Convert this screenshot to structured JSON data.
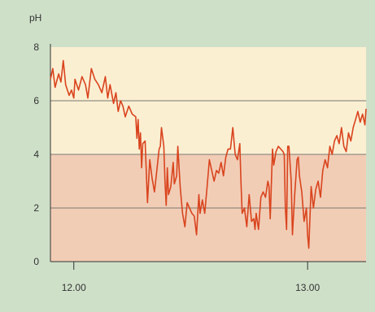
{
  "chart_data": {
    "type": "line",
    "ylabel": "pH",
    "ylim": [
      0,
      8
    ],
    "yticks": [
      0,
      2,
      4,
      6,
      8
    ],
    "xticks": [
      {
        "value": 12.0,
        "label": "12.00"
      },
      {
        "value": 13.0,
        "label": "13.00"
      }
    ],
    "xlim": [
      11.9,
      13.25
    ],
    "grid": true,
    "bands": [
      {
        "from": 0,
        "to": 4,
        "color": "#f2cdb6"
      },
      {
        "from": 4,
        "to": 8,
        "color": "#fbefd2"
      }
    ],
    "series": [
      {
        "color": "#d9441e",
        "points": [
          [
            11.9,
            6.8
          ],
          [
            11.91,
            7.2
          ],
          [
            11.92,
            6.5
          ],
          [
            11.935,
            7.0
          ],
          [
            11.945,
            6.7
          ],
          [
            11.955,
            7.5
          ],
          [
            11.965,
            6.6
          ],
          [
            11.98,
            6.2
          ],
          [
            11.99,
            6.4
          ],
          [
            12.0,
            6.1
          ],
          [
            12.005,
            6.8
          ],
          [
            12.02,
            6.4
          ],
          [
            12.035,
            6.9
          ],
          [
            12.05,
            6.6
          ],
          [
            12.06,
            6.1
          ],
          [
            12.075,
            7.2
          ],
          [
            12.09,
            6.8
          ],
          [
            12.105,
            6.6
          ],
          [
            12.12,
            6.3
          ],
          [
            12.135,
            6.9
          ],
          [
            12.145,
            6.1
          ],
          [
            12.155,
            6.6
          ],
          [
            12.17,
            5.9
          ],
          [
            12.18,
            6.3
          ],
          [
            12.19,
            5.6
          ],
          [
            12.2,
            6.0
          ],
          [
            12.21,
            5.8
          ],
          [
            12.22,
            5.4
          ],
          [
            12.235,
            5.8
          ],
          [
            12.25,
            5.5
          ],
          [
            12.265,
            5.4
          ],
          [
            12.27,
            4.6
          ],
          [
            12.275,
            5.3
          ],
          [
            12.28,
            4.2
          ],
          [
            12.285,
            4.8
          ],
          [
            12.29,
            3.5
          ],
          [
            12.295,
            4.4
          ],
          [
            12.305,
            4.5
          ],
          [
            12.315,
            2.2
          ],
          [
            12.325,
            3.8
          ],
          [
            12.335,
            3.1
          ],
          [
            12.345,
            2.6
          ],
          [
            12.355,
            3.4
          ],
          [
            12.365,
            4.2
          ],
          [
            12.37,
            4.3
          ],
          [
            12.375,
            5.0
          ],
          [
            12.385,
            4.3
          ],
          [
            12.39,
            3.0
          ],
          [
            12.395,
            2.1
          ],
          [
            12.4,
            3.5
          ],
          [
            12.405,
            2.5
          ],
          [
            12.415,
            2.8
          ],
          [
            12.425,
            3.7
          ],
          [
            12.43,
            2.9
          ],
          [
            12.44,
            3.2
          ],
          [
            12.445,
            4.3
          ],
          [
            12.455,
            2.8
          ],
          [
            12.465,
            1.8
          ],
          [
            12.475,
            1.3
          ],
          [
            12.485,
            2.2
          ],
          [
            12.495,
            2.0
          ],
          [
            12.505,
            1.8
          ],
          [
            12.515,
            1.7
          ],
          [
            12.525,
            1.0
          ],
          [
            12.535,
            2.5
          ],
          [
            12.54,
            1.8
          ],
          [
            12.55,
            2.3
          ],
          [
            12.56,
            1.8
          ],
          [
            12.57,
            2.8
          ],
          [
            12.58,
            3.8
          ],
          [
            12.59,
            3.4
          ],
          [
            12.6,
            3.0
          ],
          [
            12.61,
            3.4
          ],
          [
            12.62,
            3.3
          ],
          [
            12.63,
            3.7
          ],
          [
            12.64,
            3.2
          ],
          [
            12.65,
            3.9
          ],
          [
            12.66,
            4.2
          ],
          [
            12.67,
            4.2
          ],
          [
            12.68,
            5.0
          ],
          [
            12.69,
            4.0
          ],
          [
            12.7,
            3.8
          ],
          [
            12.71,
            4.4
          ],
          [
            12.715,
            3.0
          ],
          [
            12.72,
            1.8
          ],
          [
            12.73,
            2.0
          ],
          [
            12.74,
            1.3
          ],
          [
            12.75,
            2.5
          ],
          [
            12.76,
            1.5
          ],
          [
            12.77,
            1.6
          ],
          [
            12.775,
            1.2
          ],
          [
            12.78,
            1.8
          ],
          [
            12.79,
            1.2
          ],
          [
            12.8,
            2.4
          ],
          [
            12.81,
            2.6
          ],
          [
            12.82,
            2.4
          ],
          [
            12.83,
            3.0
          ],
          [
            12.835,
            2.8
          ],
          [
            12.84,
            1.6
          ],
          [
            12.85,
            4.2
          ],
          [
            12.855,
            3.6
          ],
          [
            12.865,
            4.1
          ],
          [
            12.875,
            4.3
          ],
          [
            12.885,
            4.2
          ],
          [
            12.895,
            4.1
          ],
          [
            12.9,
            4.0
          ],
          [
            12.905,
            2.0
          ],
          [
            12.91,
            1.2
          ],
          [
            12.915,
            4.3
          ],
          [
            12.92,
            4.3
          ],
          [
            12.93,
            3.0
          ],
          [
            12.935,
            1.0
          ],
          [
            12.945,
            2.5
          ],
          [
            12.955,
            3.8
          ],
          [
            12.96,
            3.9
          ],
          [
            12.965,
            3.2
          ],
          [
            12.975,
            2.6
          ],
          [
            12.985,
            1.5
          ],
          [
            12.995,
            2.0
          ],
          [
            13.0,
            1.0
          ],
          [
            13.005,
            0.5
          ],
          [
            13.015,
            2.8
          ],
          [
            13.025,
            2.0
          ],
          [
            13.035,
            2.7
          ],
          [
            13.045,
            3.0
          ],
          [
            13.055,
            2.4
          ],
          [
            13.065,
            3.4
          ],
          [
            13.075,
            3.8
          ],
          [
            13.085,
            3.5
          ],
          [
            13.095,
            4.3
          ],
          [
            13.105,
            4.0
          ],
          [
            13.115,
            4.5
          ],
          [
            13.125,
            4.7
          ],
          [
            13.135,
            4.4
          ],
          [
            13.145,
            5.0
          ],
          [
            13.155,
            4.3
          ],
          [
            13.165,
            4.1
          ],
          [
            13.175,
            4.8
          ],
          [
            13.185,
            4.5
          ],
          [
            13.195,
            5.0
          ],
          [
            13.205,
            5.3
          ],
          [
            13.215,
            5.6
          ],
          [
            13.225,
            5.2
          ],
          [
            13.235,
            5.5
          ],
          [
            13.245,
            5.1
          ],
          [
            13.25,
            5.7
          ]
        ]
      }
    ]
  }
}
